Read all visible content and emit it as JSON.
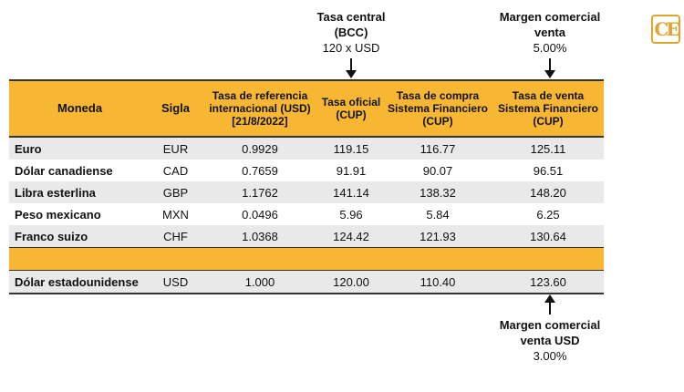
{
  "annotations": {
    "tasa_central": {
      "line1": "Tasa central",
      "line2": "(BCC)",
      "value": "120 x USD"
    },
    "margen_venta": {
      "line1": "Margen comercial",
      "line2": "venta",
      "value": "5.00%"
    },
    "margen_venta_usd": {
      "line1": "Margen comercial",
      "line2": "venta USD",
      "value": "3.00%"
    }
  },
  "table": {
    "headers": {
      "moneda": "Moneda",
      "sigla": "Sigla",
      "referencia": "Tasa de referencia internacional (USD) [21/8/2022]",
      "oficial": "Tasa oficial (CUP)",
      "compra": "Tasa de compra Sistema Financiero (CUP)",
      "venta": "Tasa de venta Sistema Financiero (CUP)"
    },
    "rows": [
      {
        "moneda": "Euro",
        "sigla": "EUR",
        "referencia": "0.9929",
        "oficial": "119.15",
        "compra": "116.77",
        "venta": "125.11"
      },
      {
        "moneda": "Dólar canadiense",
        "sigla": "CAD",
        "referencia": "0.7659",
        "oficial": "91.91",
        "compra": "90.07",
        "venta": "96.51"
      },
      {
        "moneda": "Libra esterlina",
        "sigla": "GBP",
        "referencia": "1.1762",
        "oficial": "141.14",
        "compra": "138.32",
        "venta": "148.20"
      },
      {
        "moneda": "Peso mexicano",
        "sigla": "MXN",
        "referencia": "0.0496",
        "oficial": "5.96",
        "compra": "5.84",
        "venta": "6.25"
      },
      {
        "moneda": "Franco suizo",
        "sigla": "CHF",
        "referencia": "1.0368",
        "oficial": "124.42",
        "compra": "121.93",
        "venta": "130.64"
      }
    ],
    "usd_row": {
      "moneda": "Dólar estadounidense",
      "sigla": "USD",
      "referencia": "1.000",
      "oficial": "120.00",
      "compra": "110.40",
      "venta": "123.60"
    }
  },
  "colors": {
    "header_bg": "#f7b733",
    "row_shade": "#e9e9e9",
    "logo": "#e2a52e"
  }
}
